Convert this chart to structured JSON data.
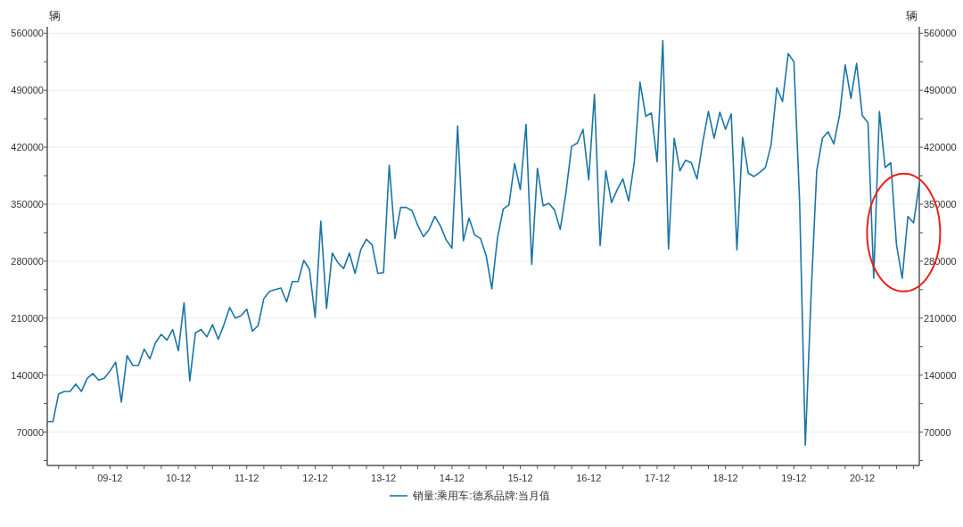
{
  "chart_data": {
    "type": "line",
    "ylabel": "辆",
    "y2label": "辆",
    "grid": "y",
    "legend": "bottom",
    "x": [
      "2009-01",
      "2009-02",
      "2009-03",
      "2009-04",
      "2009-05",
      "2009-06",
      "2009-07",
      "2009-08",
      "2009-09",
      "2009-10",
      "2009-11",
      "2009-12",
      "2010-01",
      "2010-02",
      "2010-03",
      "2010-04",
      "2010-05",
      "2010-06",
      "2010-07",
      "2010-08",
      "2010-09",
      "2010-10",
      "2010-11",
      "2010-12",
      "2011-01",
      "2011-02",
      "2011-03",
      "2011-04",
      "2011-05",
      "2011-06",
      "2011-07",
      "2011-08",
      "2011-09",
      "2011-10",
      "2011-11",
      "2011-12",
      "2012-01",
      "2012-02",
      "2012-03",
      "2012-04",
      "2012-05",
      "2012-06",
      "2012-07",
      "2012-08",
      "2012-09",
      "2012-10",
      "2012-11",
      "2012-12",
      "2013-01",
      "2013-02",
      "2013-03",
      "2013-04",
      "2013-05",
      "2013-06",
      "2013-07",
      "2013-08",
      "2013-09",
      "2013-10",
      "2013-11",
      "2013-12",
      "2014-01",
      "2014-02",
      "2014-03",
      "2014-04",
      "2014-05",
      "2014-06",
      "2014-07",
      "2014-08",
      "2014-09",
      "2014-10",
      "2014-11",
      "2014-12",
      "2015-01",
      "2015-02",
      "2015-03",
      "2015-04",
      "2015-05",
      "2015-06",
      "2015-07",
      "2015-08",
      "2015-09",
      "2015-10",
      "2015-11",
      "2015-12",
      "2016-01",
      "2016-02",
      "2016-03",
      "2016-04",
      "2016-05",
      "2016-06",
      "2016-07",
      "2016-08",
      "2016-09",
      "2016-10",
      "2016-11",
      "2016-12",
      "2017-01",
      "2017-02",
      "2017-03",
      "2017-04",
      "2017-05",
      "2017-06",
      "2017-07",
      "2017-08",
      "2017-09",
      "2017-10",
      "2017-11",
      "2017-12",
      "2018-01",
      "2018-02",
      "2018-03",
      "2018-04",
      "2018-05",
      "2018-06",
      "2018-07",
      "2018-08",
      "2018-09",
      "2018-10",
      "2018-11",
      "2018-12",
      "2019-01",
      "2019-02",
      "2019-03",
      "2019-04",
      "2019-05",
      "2019-06",
      "2019-07",
      "2019-08",
      "2019-09",
      "2019-10",
      "2019-11",
      "2019-12",
      "2020-01",
      "2020-02",
      "2020-03",
      "2020-04",
      "2020-05",
      "2020-06",
      "2020-07",
      "2020-08",
      "2020-09",
      "2020-10",
      "2020-11",
      "2020-12",
      "2021-01",
      "2021-02",
      "2021-03",
      "2021-04",
      "2021-05",
      "2021-06",
      "2021-07",
      "2021-08",
      "2021-09",
      "2021-10"
    ],
    "series": [
      {
        "name": "销量:乘用车:德系品牌:当月值",
        "color": "#1b75a6",
        "values": [
          83000,
          83000,
          117000,
          120000,
          120000,
          129000,
          120000,
          136000,
          142000,
          134000,
          136000,
          145000,
          156000,
          107000,
          164000,
          152000,
          152000,
          172000,
          160000,
          180000,
          190000,
          183000,
          196000,
          170000,
          229000,
          133000,
          192000,
          196000,
          187000,
          202000,
          184000,
          202000,
          223000,
          210000,
          213000,
          221000,
          194000,
          201000,
          234000,
          243000,
          245000,
          247000,
          230000,
          255000,
          255000,
          281000,
          270000,
          211000,
          329000,
          222000,
          290000,
          278000,
          271000,
          290000,
          265000,
          294000,
          307000,
          300000,
          265000,
          266000,
          398000,
          308000,
          346000,
          346000,
          342000,
          324000,
          310000,
          319000,
          335000,
          323000,
          306000,
          296000,
          446000,
          305000,
          333000,
          312000,
          308000,
          287000,
          246000,
          309000,
          344000,
          349000,
          400000,
          368000,
          448000,
          276000,
          394000,
          348000,
          351000,
          343000,
          319000,
          364000,
          421000,
          425000,
          442000,
          380000,
          485000,
          299000,
          391000,
          352000,
          368000,
          381000,
          354000,
          402000,
          500000,
          458000,
          462000,
          402000,
          551000,
          295000,
          431000,
          391000,
          404000,
          401000,
          381000,
          426000,
          464000,
          431000,
          463000,
          442000,
          461000,
          294000,
          432000,
          388000,
          384000,
          389000,
          395000,
          423000,
          493000,
          476000,
          535000,
          525000,
          353000,
          54000,
          236000,
          391000,
          431000,
          439000,
          424000,
          459000,
          521000,
          480000,
          523000,
          459000,
          450000,
          259000,
          464000,
          395000,
          401000,
          300000,
          259000,
          335000,
          327000,
          375000
        ]
      }
    ],
    "xlim": [
      "2009-01",
      "2021-10"
    ],
    "xticks": [
      {
        "value": "2009-03",
        "label": null
      },
      {
        "value": "2009-06",
        "label": null
      },
      {
        "value": "2009-09",
        "label": null
      },
      {
        "value": "2009-12",
        "label": "09-12"
      },
      {
        "value": "2010-03",
        "label": null
      },
      {
        "value": "2010-06",
        "label": null
      },
      {
        "value": "2010-09",
        "label": null
      },
      {
        "value": "2010-12",
        "label": "10-12"
      },
      {
        "value": "2011-03",
        "label": null
      },
      {
        "value": "2011-06",
        "label": null
      },
      {
        "value": "2011-09",
        "label": null
      },
      {
        "value": "2011-12",
        "label": "11-12"
      },
      {
        "value": "2012-03",
        "label": null
      },
      {
        "value": "2012-06",
        "label": null
      },
      {
        "value": "2012-09",
        "label": null
      },
      {
        "value": "2012-12",
        "label": "12-12"
      },
      {
        "value": "2013-03",
        "label": null
      },
      {
        "value": "2013-06",
        "label": null
      },
      {
        "value": "2013-09",
        "label": null
      },
      {
        "value": "2013-12",
        "label": "13-12"
      },
      {
        "value": "2014-03",
        "label": null
      },
      {
        "value": "2014-06",
        "label": null
      },
      {
        "value": "2014-09",
        "label": null
      },
      {
        "value": "2014-12",
        "label": "14-12"
      },
      {
        "value": "2015-03",
        "label": null
      },
      {
        "value": "2015-06",
        "label": null
      },
      {
        "value": "2015-09",
        "label": null
      },
      {
        "value": "2015-12",
        "label": "15-12"
      },
      {
        "value": "2016-03",
        "label": null
      },
      {
        "value": "2016-06",
        "label": null
      },
      {
        "value": "2016-09",
        "label": null
      },
      {
        "value": "2016-12",
        "label": "16-12"
      },
      {
        "value": "2017-03",
        "label": null
      },
      {
        "value": "2017-06",
        "label": null
      },
      {
        "value": "2017-09",
        "label": null
      },
      {
        "value": "2017-12",
        "label": "17-12"
      },
      {
        "value": "2018-03",
        "label": null
      },
      {
        "value": "2018-06",
        "label": null
      },
      {
        "value": "2018-09",
        "label": null
      },
      {
        "value": "2018-12",
        "label": "18-12"
      },
      {
        "value": "2019-03",
        "label": null
      },
      {
        "value": "2019-06",
        "label": null
      },
      {
        "value": "2019-09",
        "label": null
      },
      {
        "value": "2019-12",
        "label": "19-12"
      },
      {
        "value": "2020-03",
        "label": null
      },
      {
        "value": "2020-06",
        "label": null
      },
      {
        "value": "2020-09",
        "label": null
      },
      {
        "value": "2020-12",
        "label": "20-12"
      },
      {
        "value": "2021-03",
        "label": null
      },
      {
        "value": "2021-06",
        "label": null
      },
      {
        "value": "2021-09",
        "label": null
      }
    ],
    "ylim": [
      29000,
      568000
    ],
    "yticks": [
      {
        "value": 35000,
        "label": null
      },
      70000,
      {
        "value": 105000,
        "label": null
      },
      140000,
      {
        "value": 175000,
        "label": null
      },
      210000,
      {
        "value": 245000,
        "label": null
      },
      280000,
      {
        "value": 315000,
        "label": null
      },
      350000,
      {
        "value": 385000,
        "label": null
      },
      420000,
      {
        "value": 455000,
        "label": null
      },
      490000,
      {
        "value": 525000,
        "label": null
      },
      560000
    ],
    "y2lim": [
      29000,
      568000
    ],
    "y2ticks": [
      {
        "value": 35000,
        "label": null
      },
      70000,
      {
        "value": 105000,
        "label": null
      },
      140000,
      {
        "value": 175000,
        "label": null
      },
      210000,
      {
        "value": 245000,
        "label": null
      },
      280000,
      {
        "value": 315000,
        "label": null
      },
      350000,
      {
        "value": 385000,
        "label": null
      },
      420000,
      {
        "value": 455000,
        "label": null
      },
      490000,
      {
        "value": 525000,
        "label": null
      },
      560000
    ]
  }
}
